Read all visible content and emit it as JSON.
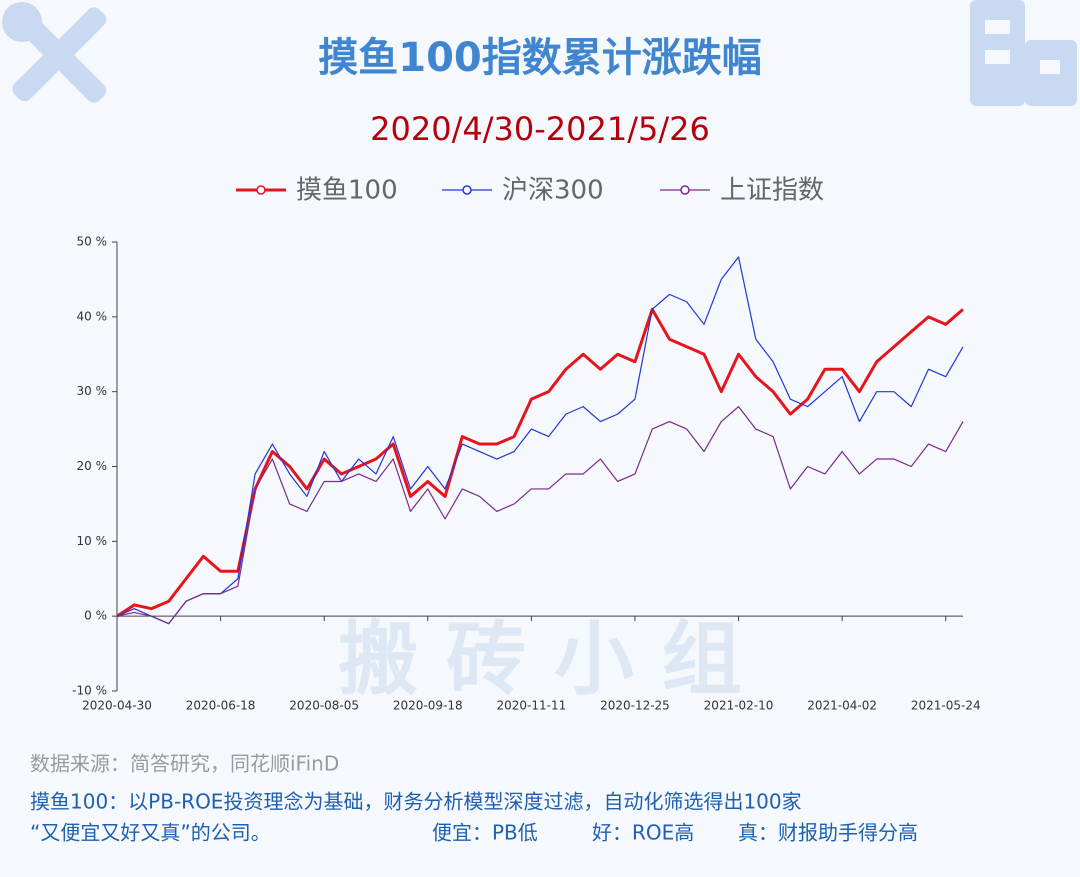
{
  "chart_data": {
    "type": "line",
    "title": "摸鱼100指数累计涨跌幅",
    "subtitle": "2020/4/30-2021/5/26",
    "watermark": "搬 砖 小 组",
    "source": "数据来源：简答研究，同花顺iFinD",
    "notes": [
      "摸鱼100：以PB-ROE投资理念为基础，财务分析模型深度过滤，自动化筛选得出100家",
      "“又便宜又好又真”的公司。",
      "便宜：PB低",
      "好：ROE高",
      "真：财报助手得分高"
    ],
    "categories": [
      "2020-04-30",
      null,
      null,
      null,
      null,
      null,
      "2020-06-18",
      null,
      null,
      null,
      null,
      null,
      "2020-08-05",
      null,
      null,
      null,
      null,
      null,
      "2020-09-18",
      null,
      null,
      null,
      null,
      null,
      "2020-11-11",
      null,
      null,
      null,
      null,
      null,
      "2020-12-25",
      null,
      null,
      null,
      null,
      null,
      "2021-02-10",
      null,
      null,
      null,
      null,
      null,
      "2021-04-02",
      null,
      null,
      null,
      null,
      null,
      "2021-05-24",
      null
    ],
    "series": [
      {
        "name": "摸鱼100",
        "color": "#e8141c",
        "width": 3,
        "values": [
          0,
          1.5,
          1,
          2,
          5,
          8,
          6,
          6,
          17,
          22,
          20,
          17,
          21,
          19,
          20,
          21,
          23,
          16,
          18,
          16,
          24,
          23,
          23,
          24,
          29,
          30,
          33,
          35,
          33,
          35,
          34,
          41,
          37,
          36,
          35,
          30,
          35,
          32,
          30,
          27,
          29,
          33,
          33,
          30,
          34,
          36,
          38,
          40,
          39,
          41
        ]
      },
      {
        "name": "沪深300",
        "color": "#2436d4",
        "width": 1.2,
        "values": [
          0,
          1,
          0,
          -1,
          2,
          3,
          3,
          5,
          19,
          23,
          19,
          16,
          22,
          18,
          21,
          19,
          24,
          17,
          20,
          17,
          23,
          22,
          21,
          22,
          25,
          24,
          27,
          28,
          26,
          27,
          29,
          41,
          43,
          42,
          39,
          45,
          48,
          37,
          34,
          29,
          28,
          30,
          32,
          26,
          30,
          30,
          28,
          33,
          32,
          36
        ]
      },
      {
        "name": "上证指数",
        "color": "#7a2a8c",
        "width": 1.2,
        "values": [
          0,
          0.5,
          0,
          -1,
          2,
          3,
          3,
          4,
          17,
          21,
          15,
          14,
          18,
          18,
          19,
          18,
          21,
          14,
          17,
          13,
          17,
          16,
          14,
          15,
          17,
          17,
          19,
          19,
          21,
          18,
          19,
          25,
          26,
          25,
          22,
          26,
          28,
          25,
          24,
          17,
          20,
          19,
          22,
          19,
          21,
          21,
          20,
          23,
          22,
          26
        ]
      }
    ],
    "ylim": [
      -10,
      50
    ],
    "yticks": [
      {
        "value": -10,
        "label": "-10 %"
      },
      {
        "value": 0,
        "label": "0 %"
      },
      {
        "value": 10,
        "label": "10 %"
      },
      {
        "value": 20,
        "label": "20 %"
      },
      {
        "value": 30,
        "label": "30 %"
      },
      {
        "value": 40,
        "label": "40 %"
      },
      {
        "value": 50,
        "label": "50 %"
      }
    ]
  }
}
